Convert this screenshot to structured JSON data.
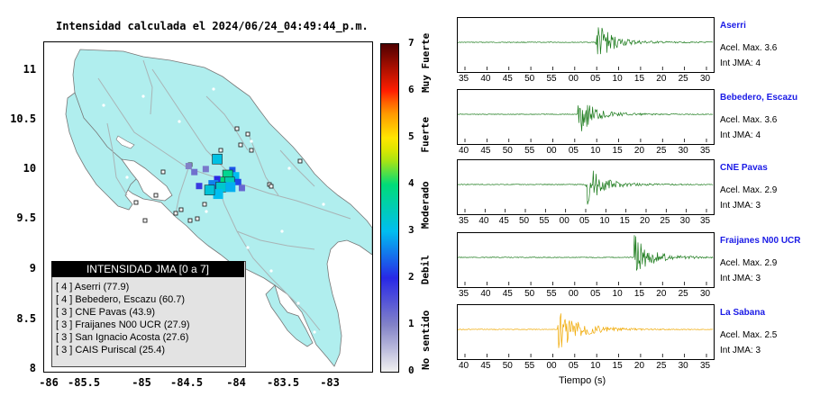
{
  "chart_data": [
    {
      "type": "heatmap",
      "title": "Intensidad calculada el 2024/06/24_04:49:44_p.m.",
      "x_ticks": [
        "-86",
        "-85.5",
        "-85",
        "-84.5",
        "-84",
        "-83.5",
        "-83"
      ],
      "y_ticks": [
        "11",
        "10.5",
        "10",
        "9.5",
        "9",
        "8.5",
        "8"
      ],
      "xlim": [
        -86,
        -82.55
      ],
      "ylim": [
        8,
        11.3
      ],
      "colorbar": {
        "min": 0,
        "max": 7,
        "ticks": [
          "0",
          "1",
          "2",
          "3",
          "4",
          "5",
          "6",
          "7"
        ],
        "labels": [
          "No sentido",
          "Debil",
          "Moderado",
          "Fuerte",
          "Muy Fuerte"
        ]
      },
      "legend": {
        "title": "INTENSIDAD JMA [0 a 7]",
        "entries": [
          "[ 4 ]  Aserri (77.9)",
          "[ 4 ]  Bebedero, Escazu (60.7)",
          "[ 3 ]  CNE Pavas (43.9)",
          "[ 3 ]  Fraijanes N00 UCR (27.9)",
          "[ 3 ]  San Ignacio Acosta (27.6)",
          "[ 3 ]  CAIS Puriscal (25.4)"
        ]
      },
      "intensity_cells": [
        {
          "lon": -84.18,
          "lat": 10.13,
          "v": 3.1
        },
        {
          "lon": -84.02,
          "lat": 10.02,
          "v": 2.3
        },
        {
          "lon": -84.0,
          "lat": 9.95,
          "v": 3.0
        },
        {
          "lon": -84.07,
          "lat": 9.97,
          "v": 3.8
        },
        {
          "lon": -84.11,
          "lat": 9.9,
          "v": 4.0
        },
        {
          "lon": -84.05,
          "lat": 9.9,
          "v": 3.5
        },
        {
          "lon": -83.96,
          "lat": 9.9,
          "v": 2.2
        },
        {
          "lon": -84.18,
          "lat": 9.93,
          "v": 2.0
        },
        {
          "lon": -84.22,
          "lat": 9.87,
          "v": 2.6
        },
        {
          "lon": -84.14,
          "lat": 9.85,
          "v": 3.3
        },
        {
          "lon": -84.04,
          "lat": 9.85,
          "v": 2.9
        },
        {
          "lon": -84.17,
          "lat": 9.78,
          "v": 3.0
        },
        {
          "lon": -84.26,
          "lat": 9.82,
          "v": 3.2
        },
        {
          "lon": -84.37,
          "lat": 9.86,
          "v": 1.8
        },
        {
          "lon": -84.42,
          "lat": 10.0,
          "v": 1.2
        },
        {
          "lon": -84.48,
          "lat": 10.06,
          "v": 1.0
        },
        {
          "lon": -83.92,
          "lat": 9.84,
          "v": 1.3
        },
        {
          "lon": -84.3,
          "lat": 10.03,
          "v": 1.1
        }
      ]
    },
    {
      "type": "line",
      "xlabel": "Tiempo (s)",
      "stations": [
        {
          "name": "Aserri",
          "accel": "Acel. Max. 3.6",
          "intensity": "Int JMA: 4",
          "color": "#1a7a1a",
          "ticks": [
            "35",
            "40",
            "45",
            "50",
            "55",
            "00",
            "05",
            "10",
            "15",
            "20",
            "25",
            "30"
          ],
          "onset": 0.54
        },
        {
          "name": "Bebedero, Escazu",
          "accel": "Acel. Max. 3.6",
          "intensity": "Int JMA: 4",
          "color": "#1a7a1a",
          "ticks": [
            "40",
            "45",
            "50",
            "55",
            "00",
            "05",
            "10",
            "15",
            "20",
            "25",
            "30",
            "35"
          ],
          "onset": 0.47
        },
        {
          "name": "CNE Pavas",
          "accel": "Acel. Max. 2.9",
          "intensity": "Int JMA: 3",
          "color": "#1a7a1a",
          "ticks": [
            "35",
            "40",
            "45",
            "50",
            "55",
            "00",
            "05",
            "10",
            "15",
            "20",
            "25",
            "30",
            "35"
          ],
          "onset": 0.5
        },
        {
          "name": "Fraijanes N00 UCR",
          "accel": "Acel. Max. 2.9",
          "intensity": "Int JMA: 3",
          "color": "#1a7a1a",
          "ticks": [
            "35",
            "40",
            "45",
            "50",
            "55",
            "00",
            "05",
            "10",
            "15",
            "20",
            "25",
            "30"
          ],
          "onset": 0.69
        },
        {
          "name": "La Sabana",
          "accel": "Acel. Max. 2.5",
          "intensity": "Int JMA: 3",
          "color": "#f0a800",
          "ticks": [
            "40",
            "45",
            "50",
            "55",
            "00",
            "05",
            "10",
            "15",
            "20",
            "25",
            "30",
            "35"
          ],
          "onset": 0.39
        }
      ]
    }
  ]
}
